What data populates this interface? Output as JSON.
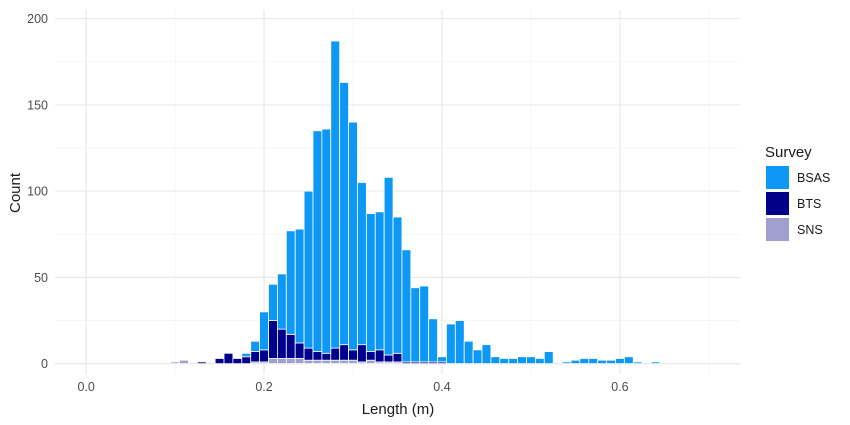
{
  "chart_data": {
    "type": "bar",
    "stacked": true,
    "title": "",
    "xlabel": "Length (m)",
    "ylabel": "Count",
    "xlim": [
      -0.035,
      0.735
    ],
    "ylim": [
      -6,
      205
    ],
    "xticks": [
      "0.0",
      "0.2",
      "0.4",
      "0.6"
    ],
    "xtick_values": [
      0.0,
      0.2,
      0.4,
      0.6
    ],
    "yticks": [
      "0",
      "50",
      "100",
      "150",
      "200"
    ],
    "ytick_values": [
      0,
      50,
      100,
      150,
      200
    ],
    "bin_width": 0.01,
    "legend_title": "Survey",
    "legend_position": "right",
    "grid": true,
    "series": [
      {
        "name": "SNS",
        "color": "#9f9fd0",
        "points": [
          [
            0.1,
            1
          ],
          [
            0.11,
            2
          ],
          [
            0.19,
            1
          ],
          [
            0.2,
            1
          ],
          [
            0.21,
            3
          ],
          [
            0.22,
            3
          ],
          [
            0.23,
            3
          ],
          [
            0.24,
            3
          ],
          [
            0.25,
            2
          ],
          [
            0.26,
            2
          ],
          [
            0.27,
            2
          ],
          [
            0.28,
            2
          ],
          [
            0.29,
            2
          ],
          [
            0.3,
            2
          ],
          [
            0.31,
            1
          ],
          [
            0.32,
            2
          ],
          [
            0.33,
            1
          ],
          [
            0.34,
            1
          ],
          [
            0.35,
            1
          ]
        ]
      },
      {
        "name": "BTS",
        "color": "#00008b",
        "points": [
          [
            0.13,
            1
          ],
          [
            0.15,
            3
          ],
          [
            0.16,
            6
          ],
          [
            0.17,
            3
          ],
          [
            0.18,
            4
          ],
          [
            0.19,
            6
          ],
          [
            0.2,
            7
          ],
          [
            0.21,
            22
          ],
          [
            0.22,
            17
          ],
          [
            0.23,
            14
          ],
          [
            0.24,
            9
          ],
          [
            0.25,
            7
          ],
          [
            0.26,
            5
          ],
          [
            0.27,
            4
          ],
          [
            0.28,
            7
          ],
          [
            0.29,
            9
          ],
          [
            0.3,
            6
          ],
          [
            0.31,
            10
          ],
          [
            0.32,
            5
          ],
          [
            0.33,
            7
          ],
          [
            0.34,
            4
          ],
          [
            0.35,
            5
          ],
          [
            0.36,
            1
          ],
          [
            0.37,
            1
          ],
          [
            0.38,
            1
          ],
          [
            0.39,
            1
          ],
          [
            0.4,
            1
          ]
        ]
      },
      {
        "name": "BSAS",
        "color": "#0d98f5",
        "points": [
          [
            0.18,
            2
          ],
          [
            0.19,
            6
          ],
          [
            0.2,
            22
          ],
          [
            0.21,
            21
          ],
          [
            0.22,
            32
          ],
          [
            0.23,
            60
          ],
          [
            0.24,
            66
          ],
          [
            0.25,
            91
          ],
          [
            0.26,
            128
          ],
          [
            0.27,
            130
          ],
          [
            0.28,
            178
          ],
          [
            0.29,
            152
          ],
          [
            0.3,
            132
          ],
          [
            0.31,
            94
          ],
          [
            0.32,
            80
          ],
          [
            0.33,
            80
          ],
          [
            0.34,
            103
          ],
          [
            0.35,
            79
          ],
          [
            0.36,
            65
          ],
          [
            0.37,
            43
          ],
          [
            0.38,
            44
          ],
          [
            0.39,
            25
          ],
          [
            0.4,
            3
          ],
          [
            0.41,
            23
          ],
          [
            0.42,
            25
          ],
          [
            0.43,
            13
          ],
          [
            0.44,
            8
          ],
          [
            0.45,
            11
          ],
          [
            0.46,
            4
          ],
          [
            0.47,
            3
          ],
          [
            0.48,
            3
          ],
          [
            0.49,
            4
          ],
          [
            0.5,
            4
          ],
          [
            0.51,
            3
          ],
          [
            0.52,
            7
          ],
          [
            0.54,
            1
          ],
          [
            0.55,
            2
          ],
          [
            0.56,
            3
          ],
          [
            0.57,
            3
          ],
          [
            0.58,
            2
          ],
          [
            0.59,
            2
          ],
          [
            0.6,
            3
          ],
          [
            0.61,
            4
          ],
          [
            0.62,
            1
          ],
          [
            0.64,
            1
          ]
        ]
      }
    ],
    "legend_order": [
      "BSAS",
      "BTS",
      "SNS"
    ]
  }
}
